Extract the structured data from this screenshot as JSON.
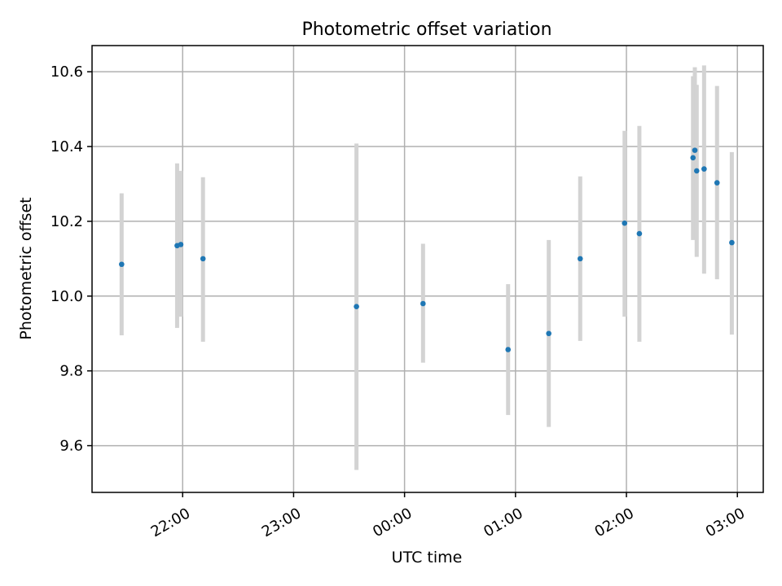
{
  "chart_data": {
    "type": "scatter",
    "title": "Photometric offset variation",
    "xlabel": "UTC time",
    "ylabel": "Photometric offset",
    "x_ticks": [
      {
        "value": 1320,
        "label": "22:00"
      },
      {
        "value": 1380,
        "label": "23:00"
      },
      {
        "value": 1440,
        "label": "00:00"
      },
      {
        "value": 1500,
        "label": "01:00"
      },
      {
        "value": 1560,
        "label": "02:00"
      },
      {
        "value": 1620,
        "label": "03:00"
      }
    ],
    "y_ticks": [
      {
        "value": 9.6,
        "label": "9.6"
      },
      {
        "value": 9.8,
        "label": "9.8"
      },
      {
        "value": 10.0,
        "label": "10.0"
      },
      {
        "value": 10.2,
        "label": "10.2"
      },
      {
        "value": 10.4,
        "label": "10.4"
      },
      {
        "value": 10.6,
        "label": "10.6"
      }
    ],
    "xlim": [
      1271,
      1634
    ],
    "ylim": [
      9.475,
      10.67
    ],
    "grid": true,
    "point_color": "#1f77b4",
    "errorbar_color": "#d3d3d3",
    "points": [
      {
        "time": "21:27",
        "x": 1287,
        "y": 10.085,
        "ylow": 9.895,
        "yhigh": 10.275
      },
      {
        "time": "21:57",
        "x": 1317,
        "y": 10.135,
        "ylow": 9.915,
        "yhigh": 10.355
      },
      {
        "time": "21:59",
        "x": 1319,
        "y": 10.138,
        "ylow": 9.945,
        "yhigh": 10.335
      },
      {
        "time": "22:11",
        "x": 1331,
        "y": 10.1,
        "ylow": 9.878,
        "yhigh": 10.318
      },
      {
        "time": "23:34",
        "x": 1414,
        "y": 9.972,
        "ylow": 9.535,
        "yhigh": 10.408
      },
      {
        "time": "00:10",
        "x": 1450,
        "y": 9.98,
        "ylow": 9.822,
        "yhigh": 10.14
      },
      {
        "time": "00:56",
        "x": 1496,
        "y": 9.857,
        "ylow": 9.682,
        "yhigh": 10.032
      },
      {
        "time": "01:18",
        "x": 1518,
        "y": 9.9,
        "ylow": 9.65,
        "yhigh": 10.15
      },
      {
        "time": "01:35",
        "x": 1535,
        "y": 10.1,
        "ylow": 9.88,
        "yhigh": 10.32
      },
      {
        "time": "01:59",
        "x": 1559,
        "y": 10.195,
        "ylow": 9.945,
        "yhigh": 10.442
      },
      {
        "time": "02:07",
        "x": 1567,
        "y": 10.167,
        "ylow": 9.878,
        "yhigh": 10.455
      },
      {
        "time": "02:36",
        "x": 1596,
        "y": 10.37,
        "ylow": 10.15,
        "yhigh": 10.588
      },
      {
        "time": "02:37",
        "x": 1597,
        "y": 10.39,
        "ylow": 10.17,
        "yhigh": 10.612
      },
      {
        "time": "02:38",
        "x": 1598,
        "y": 10.335,
        "ylow": 10.105,
        "yhigh": 10.565
      },
      {
        "time": "02:42",
        "x": 1602,
        "y": 10.34,
        "ylow": 10.06,
        "yhigh": 10.617
      },
      {
        "time": "02:49",
        "x": 1609,
        "y": 10.303,
        "ylow": 10.045,
        "yhigh": 10.562
      },
      {
        "time": "02:57",
        "x": 1617,
        "y": 10.143,
        "ylow": 9.897,
        "yhigh": 10.385
      }
    ]
  }
}
